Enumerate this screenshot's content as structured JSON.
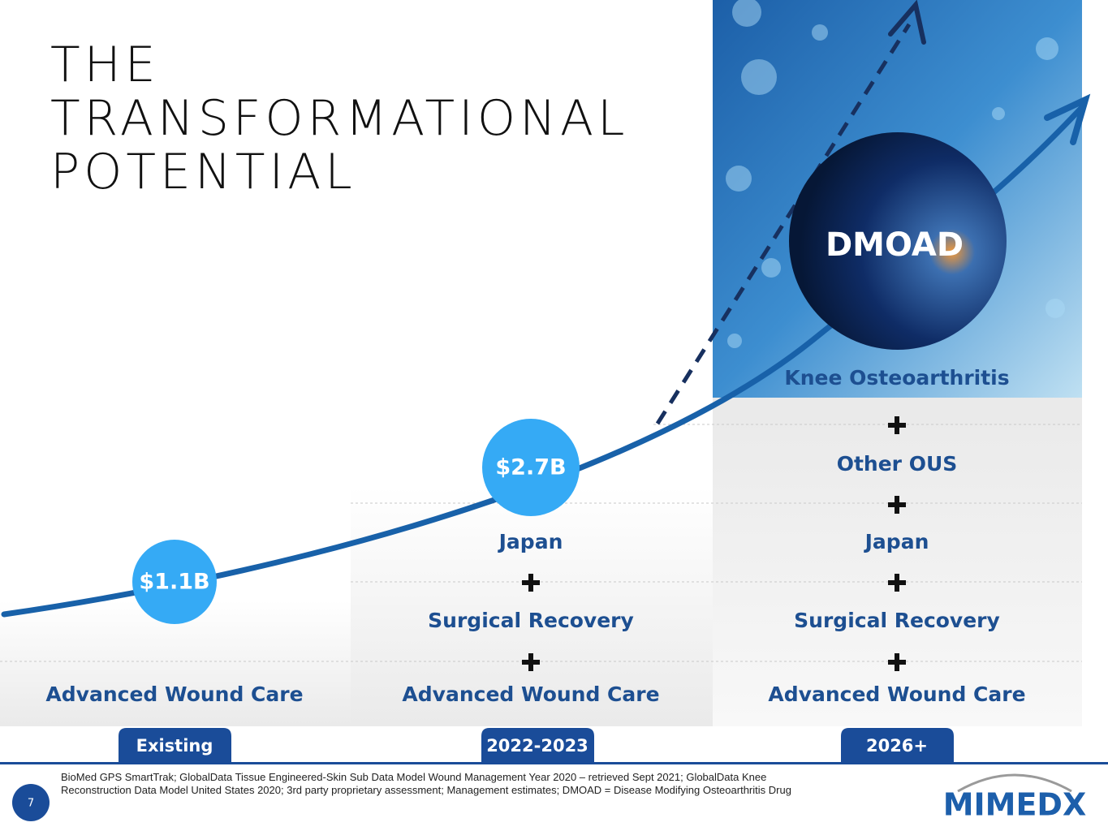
{
  "title": [
    "THE",
    "TRANSFORMATIONAL",
    "POTENTIAL"
  ],
  "columns": [
    {
      "stage": "Existing",
      "bubble": "$1.1B",
      "items": [
        "Advanced Wound Care"
      ]
    },
    {
      "stage": "2022-2023",
      "bubble": "$2.7B",
      "items": [
        "Japan",
        "Surgical Recovery",
        "Advanced Wound Care"
      ]
    },
    {
      "stage": "2026+",
      "bubble": "DMOAD",
      "items": [
        "Knee Osteoarthritis",
        "Other OUS",
        "Japan",
        "Surgical Recovery",
        "Advanced Wound Care"
      ]
    }
  ],
  "footnote": [
    "BioMed GPS SmartTrak; GlobalData Tissue Engineered-Skin Sub Data Model Wound Management Year 2020 – retrieved Sept 2021; GlobalData Knee",
    "Reconstruction Data Model United States 2020; 3rd party proprietary assessment; Management estimates; DMOAD = Disease Modifying Osteoarthritis Drug"
  ],
  "page_number": "7",
  "logo": "MIMEDX"
}
